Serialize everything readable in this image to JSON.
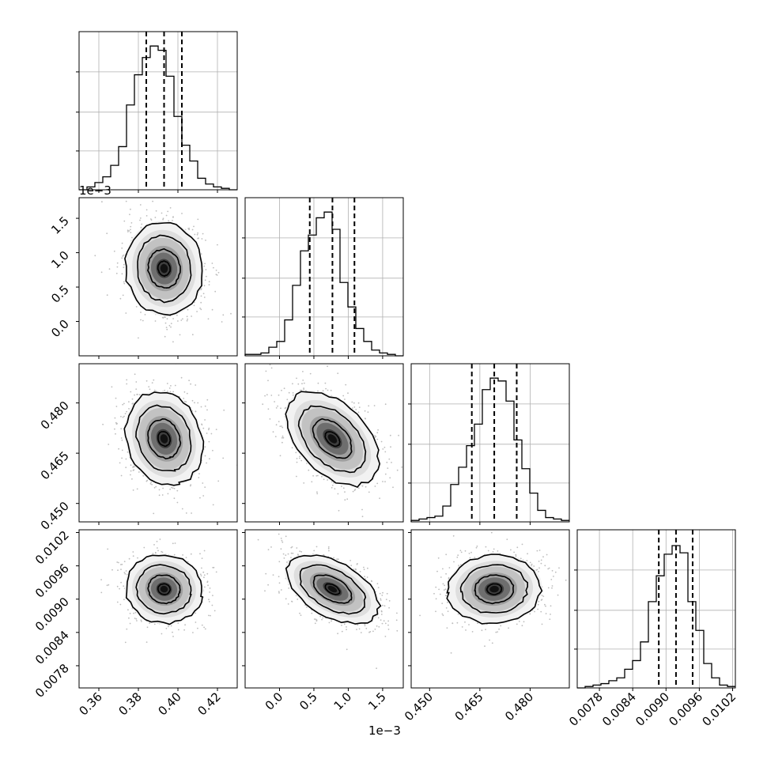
{
  "chart_data": {
    "type": "corner",
    "parameters": [
      {
        "range": [
          0.35,
          0.43
        ],
        "ticks": [
          0.36,
          0.38,
          0.4,
          0.42
        ],
        "tick_labels": [
          "0.36",
          "0.38",
          "0.40",
          "0.42"
        ],
        "offset_label": "",
        "quantiles": [
          0.384,
          0.393,
          0.402
        ],
        "peak": 0.393,
        "sigma": 0.0095,
        "hist_bins": 20
      },
      {
        "range": [
          -0.0005,
          0.0018
        ],
        "ticks": [
          0.0,
          0.0005,
          0.001,
          0.0015
        ],
        "tick_labels": [
          "0.0",
          "0.5",
          "1.0",
          "1.5"
        ],
        "offset_label": "1e−3",
        "quantiles": [
          0.00044,
          0.00077,
          0.00109
        ],
        "peak": 0.00077,
        "sigma": 0.00033,
        "hist_bins": 20
      },
      {
        "range": [
          0.4445,
          0.4917
        ],
        "ticks": [
          0.45,
          0.465,
          0.48
        ],
        "tick_labels": [
          "0.450",
          "0.465",
          "0.480"
        ],
        "offset_label": "",
        "quantiles": [
          0.4626,
          0.4693,
          0.476
        ],
        "peak": 0.4693,
        "sigma": 0.0068,
        "hist_bins": 20
      },
      {
        "range": [
          0.0074,
          0.01025
        ],
        "ticks": [
          0.0078,
          0.0084,
          0.009,
          0.0096,
          0.0102
        ],
        "tick_labels": [
          "0.0078",
          "0.0084",
          "0.0090",
          "0.0096",
          "0.0102"
        ],
        "offset_label": "",
        "quantiles": [
          0.00887,
          0.00918,
          0.00948
        ],
        "peak": 0.00918,
        "sigma": 0.0003,
        "hist_bins": 20
      }
    ],
    "histogram_counts": [
      [
        0.0,
        0.02,
        0.05,
        0.09,
        0.17,
        0.3,
        0.59,
        0.8,
        0.92,
        1.0,
        0.97,
        0.79,
        0.51,
        0.31,
        0.2,
        0.08,
        0.04,
        0.02,
        0.01,
        0.0
      ],
      [
        0.01,
        0.01,
        0.02,
        0.06,
        0.1,
        0.25,
        0.49,
        0.73,
        0.84,
        0.96,
        1.0,
        0.88,
        0.51,
        0.34,
        0.19,
        0.1,
        0.04,
        0.02,
        0.01,
        0.0
      ],
      [
        0.01,
        0.02,
        0.03,
        0.04,
        0.11,
        0.26,
        0.38,
        0.53,
        0.68,
        0.92,
        1.0,
        0.98,
        0.84,
        0.57,
        0.37,
        0.2,
        0.08,
        0.03,
        0.02,
        0.01
      ],
      [
        0.0,
        0.01,
        0.02,
        0.03,
        0.05,
        0.07,
        0.13,
        0.19,
        0.32,
        0.6,
        0.78,
        0.93,
        0.99,
        0.94,
        0.6,
        0.4,
        0.17,
        0.07,
        0.02,
        0.01
      ]
    ],
    "pair_correlations": [
      {
        "row": 1,
        "col": 0,
        "rho": -0.05
      },
      {
        "row": 2,
        "col": 0,
        "rho": -0.15
      },
      {
        "row": 2,
        "col": 1,
        "rho": -0.45
      },
      {
        "row": 3,
        "col": 0,
        "rho": -0.05
      },
      {
        "row": 3,
        "col": 1,
        "rho": -0.5
      },
      {
        "row": 3,
        "col": 2,
        "rho": 0.05
      }
    ],
    "top_left_offset_label": "1e−3",
    "grid": true,
    "contour_levels": 3,
    "quantile_line_style": "dashed"
  }
}
